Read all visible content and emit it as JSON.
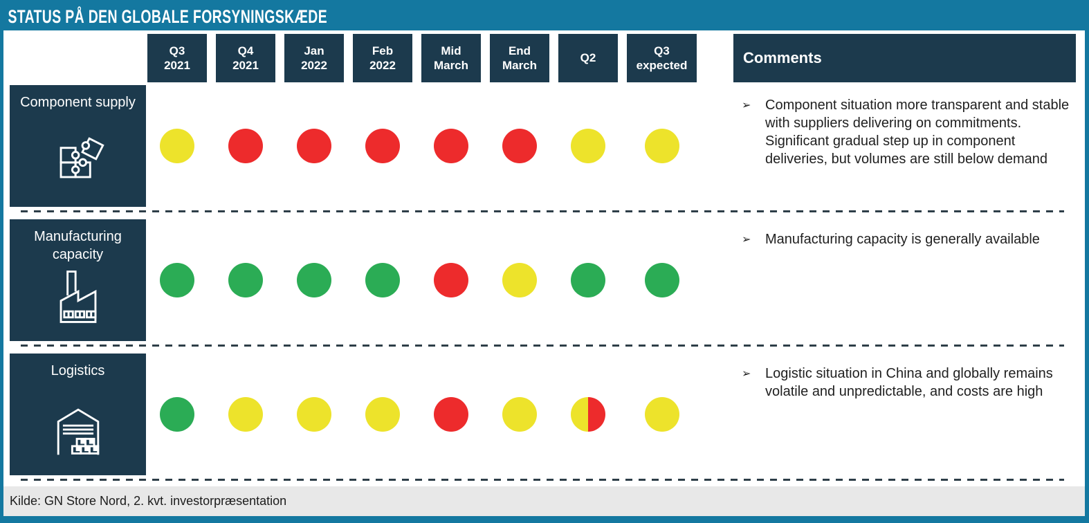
{
  "title": "STATUS PÅ DEN GLOBALE FORSYNINGSKÆDE",
  "comments_header": "Comments",
  "source": "Kilde: GN Store Nord, 2. kvt. investorpræsentation",
  "bullet": "➢",
  "columns": [
    {
      "l1": "Q3",
      "l2": "2021"
    },
    {
      "l1": "Q4",
      "l2": "2021"
    },
    {
      "l1": "Jan",
      "l2": "2022"
    },
    {
      "l1": "Feb",
      "l2": "2022"
    },
    {
      "l1": "Mid",
      "l2": "March"
    },
    {
      "l1": "End",
      "l2": "March"
    },
    {
      "l1": "Q2",
      "l2": ""
    },
    {
      "l1": "Q3",
      "l2": "expected"
    }
  ],
  "rows": [
    {
      "label": "Component supply",
      "icon": "puzzle-icon",
      "statuses": [
        "yellow",
        "red",
        "red",
        "red",
        "red",
        "red",
        "yellow",
        "yellow"
      ],
      "comment": "Component situation more transparent and stable with suppliers delivering on commitments. Significant gradual step up in component deliveries, but volumes are still below demand"
    },
    {
      "label": "Manufacturing capacity",
      "icon": "factory-icon",
      "statuses": [
        "green",
        "green",
        "green",
        "green",
        "red",
        "yellow",
        "green",
        "green"
      ],
      "comment": "Manufacturing capacity is generally available"
    },
    {
      "label": "Logistics",
      "icon": "warehouse-icon",
      "statuses": [
        "green",
        "yellow",
        "yellow",
        "yellow",
        "red",
        "yellow",
        "yellow/red",
        "yellow"
      ],
      "comment": "Logistic situation in China and globally remains volatile and unpredictable, and costs are high"
    }
  ],
  "colors": {
    "red": "#ED2B2C",
    "yellow": "#EDE32B",
    "green": "#2BAC55",
    "navy": "#1C3A4D",
    "teal": "#1478A0",
    "footer_gray": "#E8E8E8",
    "dash": "#2E3E48"
  },
  "chart_data": {
    "type": "heatmap",
    "title": "STATUS PÅ DEN GLOBALE FORSYNINGSKÆDE",
    "categories": [
      "Q3 2021",
      "Q4 2021",
      "Jan 2022",
      "Feb 2022",
      "Mid March",
      "End March",
      "Q2",
      "Q3 expected"
    ],
    "series": [
      {
        "name": "Component supply",
        "values": [
          "yellow",
          "red",
          "red",
          "red",
          "red",
          "red",
          "yellow",
          "yellow"
        ]
      },
      {
        "name": "Manufacturing capacity",
        "values": [
          "green",
          "green",
          "green",
          "green",
          "red",
          "yellow",
          "green",
          "green"
        ]
      },
      {
        "name": "Logistics",
        "values": [
          "green",
          "yellow",
          "yellow",
          "yellow",
          "red",
          "yellow",
          "yellow/red",
          "yellow"
        ]
      }
    ],
    "value_encoding": "traffic-light status dots (green = ok, yellow = caution, red = problem; 'yellow/red' = half yellow, half red)",
    "legend_position": "none",
    "grid": false
  }
}
